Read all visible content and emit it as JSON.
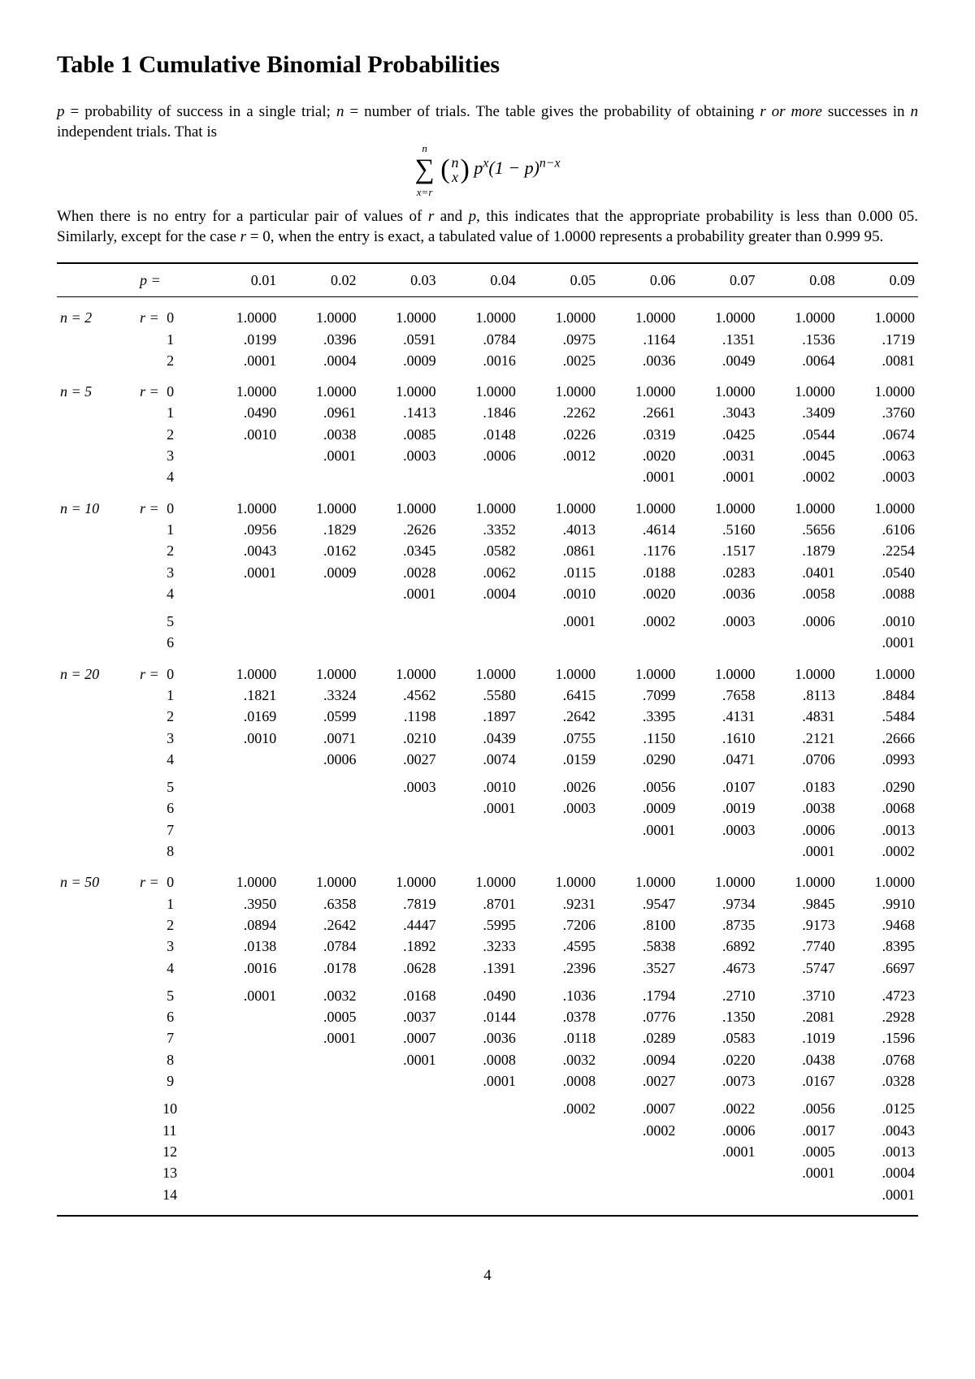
{
  "title": "Table 1  Cumulative Binomial Probabilities",
  "intro1_a": "p",
  "intro1_b": " = probability of success in a single trial; ",
  "intro1_c": "n",
  "intro1_d": " = number of trials. The table gives the probability of obtaining ",
  "intro1_e": "r or more",
  "intro1_f": " successes in ",
  "intro1_g": "n",
  "intro1_h": " independent trials. That is",
  "intro2_a": "When there is no entry for a particular pair of values of ",
  "intro2_b": "r",
  "intro2_c": " and ",
  "intro2_d": "p",
  "intro2_e": ", this indicates that the appropriate probability is less than 0.000 05. Similarly, except for the case ",
  "intro2_f": "r",
  "intro2_g": " = 0, when the entry is exact, a tabulated value of 1.0000 represents a probability greater than 0.999 95.",
  "header_p": "p =",
  "p_values": [
    "0.01",
    "0.02",
    "0.03",
    "0.04",
    "0.05",
    "0.06",
    "0.07",
    "0.08",
    "0.09"
  ],
  "page_number": "4",
  "groups": [
    {
      "n": "n = 2",
      "blocks": [
        [
          {
            "r": "r = 0",
            "v": [
              "1.0000",
              "1.0000",
              "1.0000",
              "1.0000",
              "1.0000",
              "1.0000",
              "1.0000",
              "1.0000",
              "1.0000"
            ]
          },
          {
            "r": "1",
            "v": [
              ".0199",
              ".0396",
              ".0591",
              ".0784",
              ".0975",
              ".1164",
              ".1351",
              ".1536",
              ".1719"
            ]
          },
          {
            "r": "2",
            "v": [
              ".0001",
              ".0004",
              ".0009",
              ".0016",
              ".0025",
              ".0036",
              ".0049",
              ".0064",
              ".0081"
            ]
          }
        ]
      ]
    },
    {
      "n": "n = 5",
      "blocks": [
        [
          {
            "r": "r = 0",
            "v": [
              "1.0000",
              "1.0000",
              "1.0000",
              "1.0000",
              "1.0000",
              "1.0000",
              "1.0000",
              "1.0000",
              "1.0000"
            ]
          },
          {
            "r": "1",
            "v": [
              ".0490",
              ".0961",
              ".1413",
              ".1846",
              ".2262",
              ".2661",
              ".3043",
              ".3409",
              ".3760"
            ]
          },
          {
            "r": "2",
            "v": [
              ".0010",
              ".0038",
              ".0085",
              ".0148",
              ".0226",
              ".0319",
              ".0425",
              ".0544",
              ".0674"
            ]
          },
          {
            "r": "3",
            "v": [
              "",
              ".0001",
              ".0003",
              ".0006",
              ".0012",
              ".0020",
              ".0031",
              ".0045",
              ".0063"
            ]
          },
          {
            "r": "4",
            "v": [
              "",
              "",
              "",
              "",
              "",
              ".0001",
              ".0001",
              ".0002",
              ".0003"
            ]
          }
        ]
      ]
    },
    {
      "n": "n = 10",
      "blocks": [
        [
          {
            "r": "r = 0",
            "v": [
              "1.0000",
              "1.0000",
              "1.0000",
              "1.0000",
              "1.0000",
              "1.0000",
              "1.0000",
              "1.0000",
              "1.0000"
            ]
          },
          {
            "r": "1",
            "v": [
              ".0956",
              ".1829",
              ".2626",
              ".3352",
              ".4013",
              ".4614",
              ".5160",
              ".5656",
              ".6106"
            ]
          },
          {
            "r": "2",
            "v": [
              ".0043",
              ".0162",
              ".0345",
              ".0582",
              ".0861",
              ".1176",
              ".1517",
              ".1879",
              ".2254"
            ]
          },
          {
            "r": "3",
            "v": [
              ".0001",
              ".0009",
              ".0028",
              ".0062",
              ".0115",
              ".0188",
              ".0283",
              ".0401",
              ".0540"
            ]
          },
          {
            "r": "4",
            "v": [
              "",
              "",
              ".0001",
              ".0004",
              ".0010",
              ".0020",
              ".0036",
              ".0058",
              ".0088"
            ]
          }
        ],
        [
          {
            "r": "5",
            "v": [
              "",
              "",
              "",
              "",
              ".0001",
              ".0002",
              ".0003",
              ".0006",
              ".0010"
            ]
          },
          {
            "r": "6",
            "v": [
              "",
              "",
              "",
              "",
              "",
              "",
              "",
              "",
              ".0001"
            ]
          }
        ]
      ]
    },
    {
      "n": "n = 20",
      "blocks": [
        [
          {
            "r": "r = 0",
            "v": [
              "1.0000",
              "1.0000",
              "1.0000",
              "1.0000",
              "1.0000",
              "1.0000",
              "1.0000",
              "1.0000",
              "1.0000"
            ]
          },
          {
            "r": "1",
            "v": [
              ".1821",
              ".3324",
              ".4562",
              ".5580",
              ".6415",
              ".7099",
              ".7658",
              ".8113",
              ".8484"
            ]
          },
          {
            "r": "2",
            "v": [
              ".0169",
              ".0599",
              ".1198",
              ".1897",
              ".2642",
              ".3395",
              ".4131",
              ".4831",
              ".5484"
            ]
          },
          {
            "r": "3",
            "v": [
              ".0010",
              ".0071",
              ".0210",
              ".0439",
              ".0755",
              ".1150",
              ".1610",
              ".2121",
              ".2666"
            ]
          },
          {
            "r": "4",
            "v": [
              "",
              ".0006",
              ".0027",
              ".0074",
              ".0159",
              ".0290",
              ".0471",
              ".0706",
              ".0993"
            ]
          }
        ],
        [
          {
            "r": "5",
            "v": [
              "",
              "",
              ".0003",
              ".0010",
              ".0026",
              ".0056",
              ".0107",
              ".0183",
              ".0290"
            ]
          },
          {
            "r": "6",
            "v": [
              "",
              "",
              "",
              ".0001",
              ".0003",
              ".0009",
              ".0019",
              ".0038",
              ".0068"
            ]
          },
          {
            "r": "7",
            "v": [
              "",
              "",
              "",
              "",
              "",
              ".0001",
              ".0003",
              ".0006",
              ".0013"
            ]
          },
          {
            "r": "8",
            "v": [
              "",
              "",
              "",
              "",
              "",
              "",
              "",
              ".0001",
              ".0002"
            ]
          }
        ]
      ]
    },
    {
      "n": "n = 50",
      "blocks": [
        [
          {
            "r": "r = 0",
            "v": [
              "1.0000",
              "1.0000",
              "1.0000",
              "1.0000",
              "1.0000",
              "1.0000",
              "1.0000",
              "1.0000",
              "1.0000"
            ]
          },
          {
            "r": "1",
            "v": [
              ".3950",
              ".6358",
              ".7819",
              ".8701",
              ".9231",
              ".9547",
              ".9734",
              ".9845",
              ".9910"
            ]
          },
          {
            "r": "2",
            "v": [
              ".0894",
              ".2642",
              ".4447",
              ".5995",
              ".7206",
              ".8100",
              ".8735",
              ".9173",
              ".9468"
            ]
          },
          {
            "r": "3",
            "v": [
              ".0138",
              ".0784",
              ".1892",
              ".3233",
              ".4595",
              ".5838",
              ".6892",
              ".7740",
              ".8395"
            ]
          },
          {
            "r": "4",
            "v": [
              ".0016",
              ".0178",
              ".0628",
              ".1391",
              ".2396",
              ".3527",
              ".4673",
              ".5747",
              ".6697"
            ]
          }
        ],
        [
          {
            "r": "5",
            "v": [
              ".0001",
              ".0032",
              ".0168",
              ".0490",
              ".1036",
              ".1794",
              ".2710",
              ".3710",
              ".4723"
            ]
          },
          {
            "r": "6",
            "v": [
              "",
              ".0005",
              ".0037",
              ".0144",
              ".0378",
              ".0776",
              ".1350",
              ".2081",
              ".2928"
            ]
          },
          {
            "r": "7",
            "v": [
              "",
              ".0001",
              ".0007",
              ".0036",
              ".0118",
              ".0289",
              ".0583",
              ".1019",
              ".1596"
            ]
          },
          {
            "r": "8",
            "v": [
              "",
              "",
              ".0001",
              ".0008",
              ".0032",
              ".0094",
              ".0220",
              ".0438",
              ".0768"
            ]
          },
          {
            "r": "9",
            "v": [
              "",
              "",
              "",
              ".0001",
              ".0008",
              ".0027",
              ".0073",
              ".0167",
              ".0328"
            ]
          }
        ],
        [
          {
            "r": "10",
            "v": [
              "",
              "",
              "",
              "",
              ".0002",
              ".0007",
              ".0022",
              ".0056",
              ".0125"
            ]
          },
          {
            "r": "11",
            "v": [
              "",
              "",
              "",
              "",
              "",
              ".0002",
              ".0006",
              ".0017",
              ".0043"
            ]
          },
          {
            "r": "12",
            "v": [
              "",
              "",
              "",
              "",
              "",
              "",
              ".0001",
              ".0005",
              ".0013"
            ]
          },
          {
            "r": "13",
            "v": [
              "",
              "",
              "",
              "",
              "",
              "",
              "",
              ".0001",
              ".0004"
            ]
          },
          {
            "r": "14",
            "v": [
              "",
              "",
              "",
              "",
              "",
              "",
              "",
              "",
              ".0001"
            ]
          }
        ]
      ]
    }
  ]
}
